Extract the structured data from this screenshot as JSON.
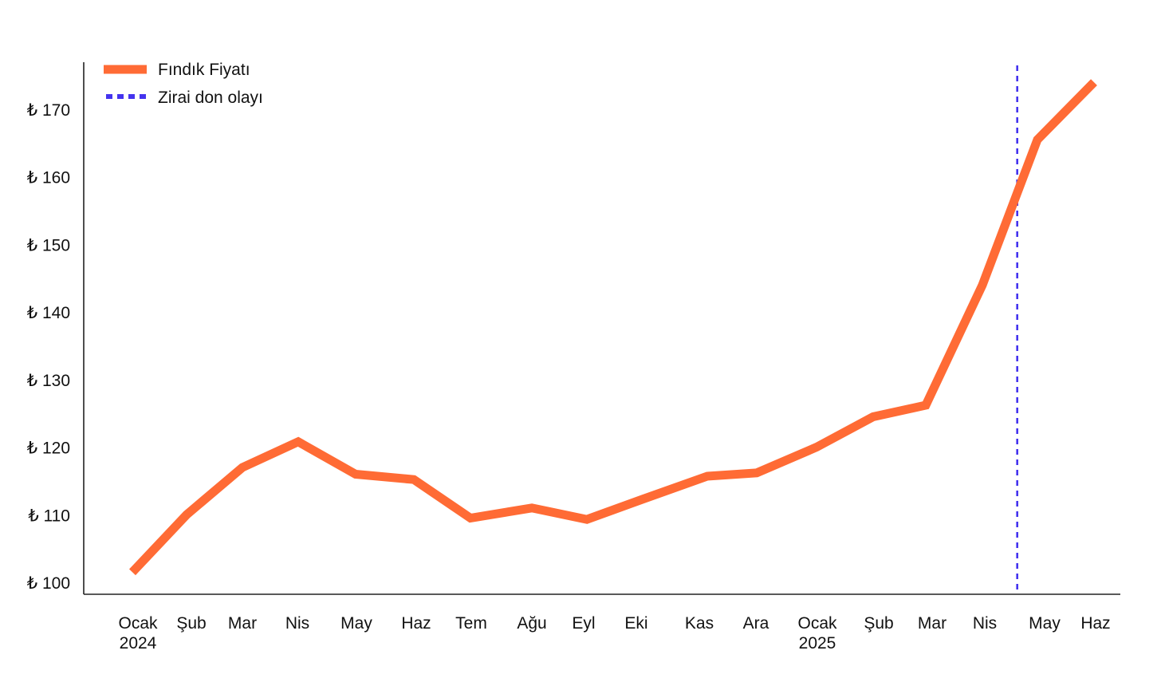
{
  "chart_data": {
    "type": "line",
    "title": "",
    "xlabel": "",
    "ylabel": "",
    "y_prefix": "₺",
    "ylim": [
      98,
      176
    ],
    "yticks": [
      100,
      110,
      120,
      130,
      140,
      150,
      160,
      170
    ],
    "grid": false,
    "legend_position": "top-left",
    "x": [
      {
        "month": "Ocak",
        "year": "2024"
      },
      {
        "month": "Şub",
        "year": ""
      },
      {
        "month": "Mar",
        "year": ""
      },
      {
        "month": "Nis",
        "year": ""
      },
      {
        "month": "May",
        "year": ""
      },
      {
        "month": "Haz",
        "year": ""
      },
      {
        "month": "Tem",
        "year": ""
      },
      {
        "month": "Ağu",
        "year": ""
      },
      {
        "month": "Eyl",
        "year": ""
      },
      {
        "month": "Eki",
        "year": ""
      },
      {
        "month": "Kas",
        "year": ""
      },
      {
        "month": "Ara",
        "year": ""
      },
      {
        "month": "Ocak",
        "year": "2025"
      },
      {
        "month": "Şub",
        "year": ""
      },
      {
        "month": "Mar",
        "year": ""
      },
      {
        "month": "Nis",
        "year": ""
      },
      {
        "month": "May",
        "year": ""
      },
      {
        "month": "Haz",
        "year": ""
      }
    ],
    "series": [
      {
        "name": "Fındık Fiyatı",
        "color": "#ff6b35",
        "style": "solid",
        "values": [
          101.5,
          110.0,
          117.0,
          120.8,
          116.0,
          115.2,
          109.5,
          111.0,
          109.3,
          112.3,
          115.7,
          116.2,
          120.0,
          124.5,
          126.2,
          144.0,
          165.5,
          174.0
        ]
      }
    ],
    "annotations": [
      {
        "type": "vertical-line",
        "name": "Zirai don olayı",
        "color": "#4433ee",
        "style": "dotted",
        "x_date": "2025-04-20"
      }
    ]
  }
}
